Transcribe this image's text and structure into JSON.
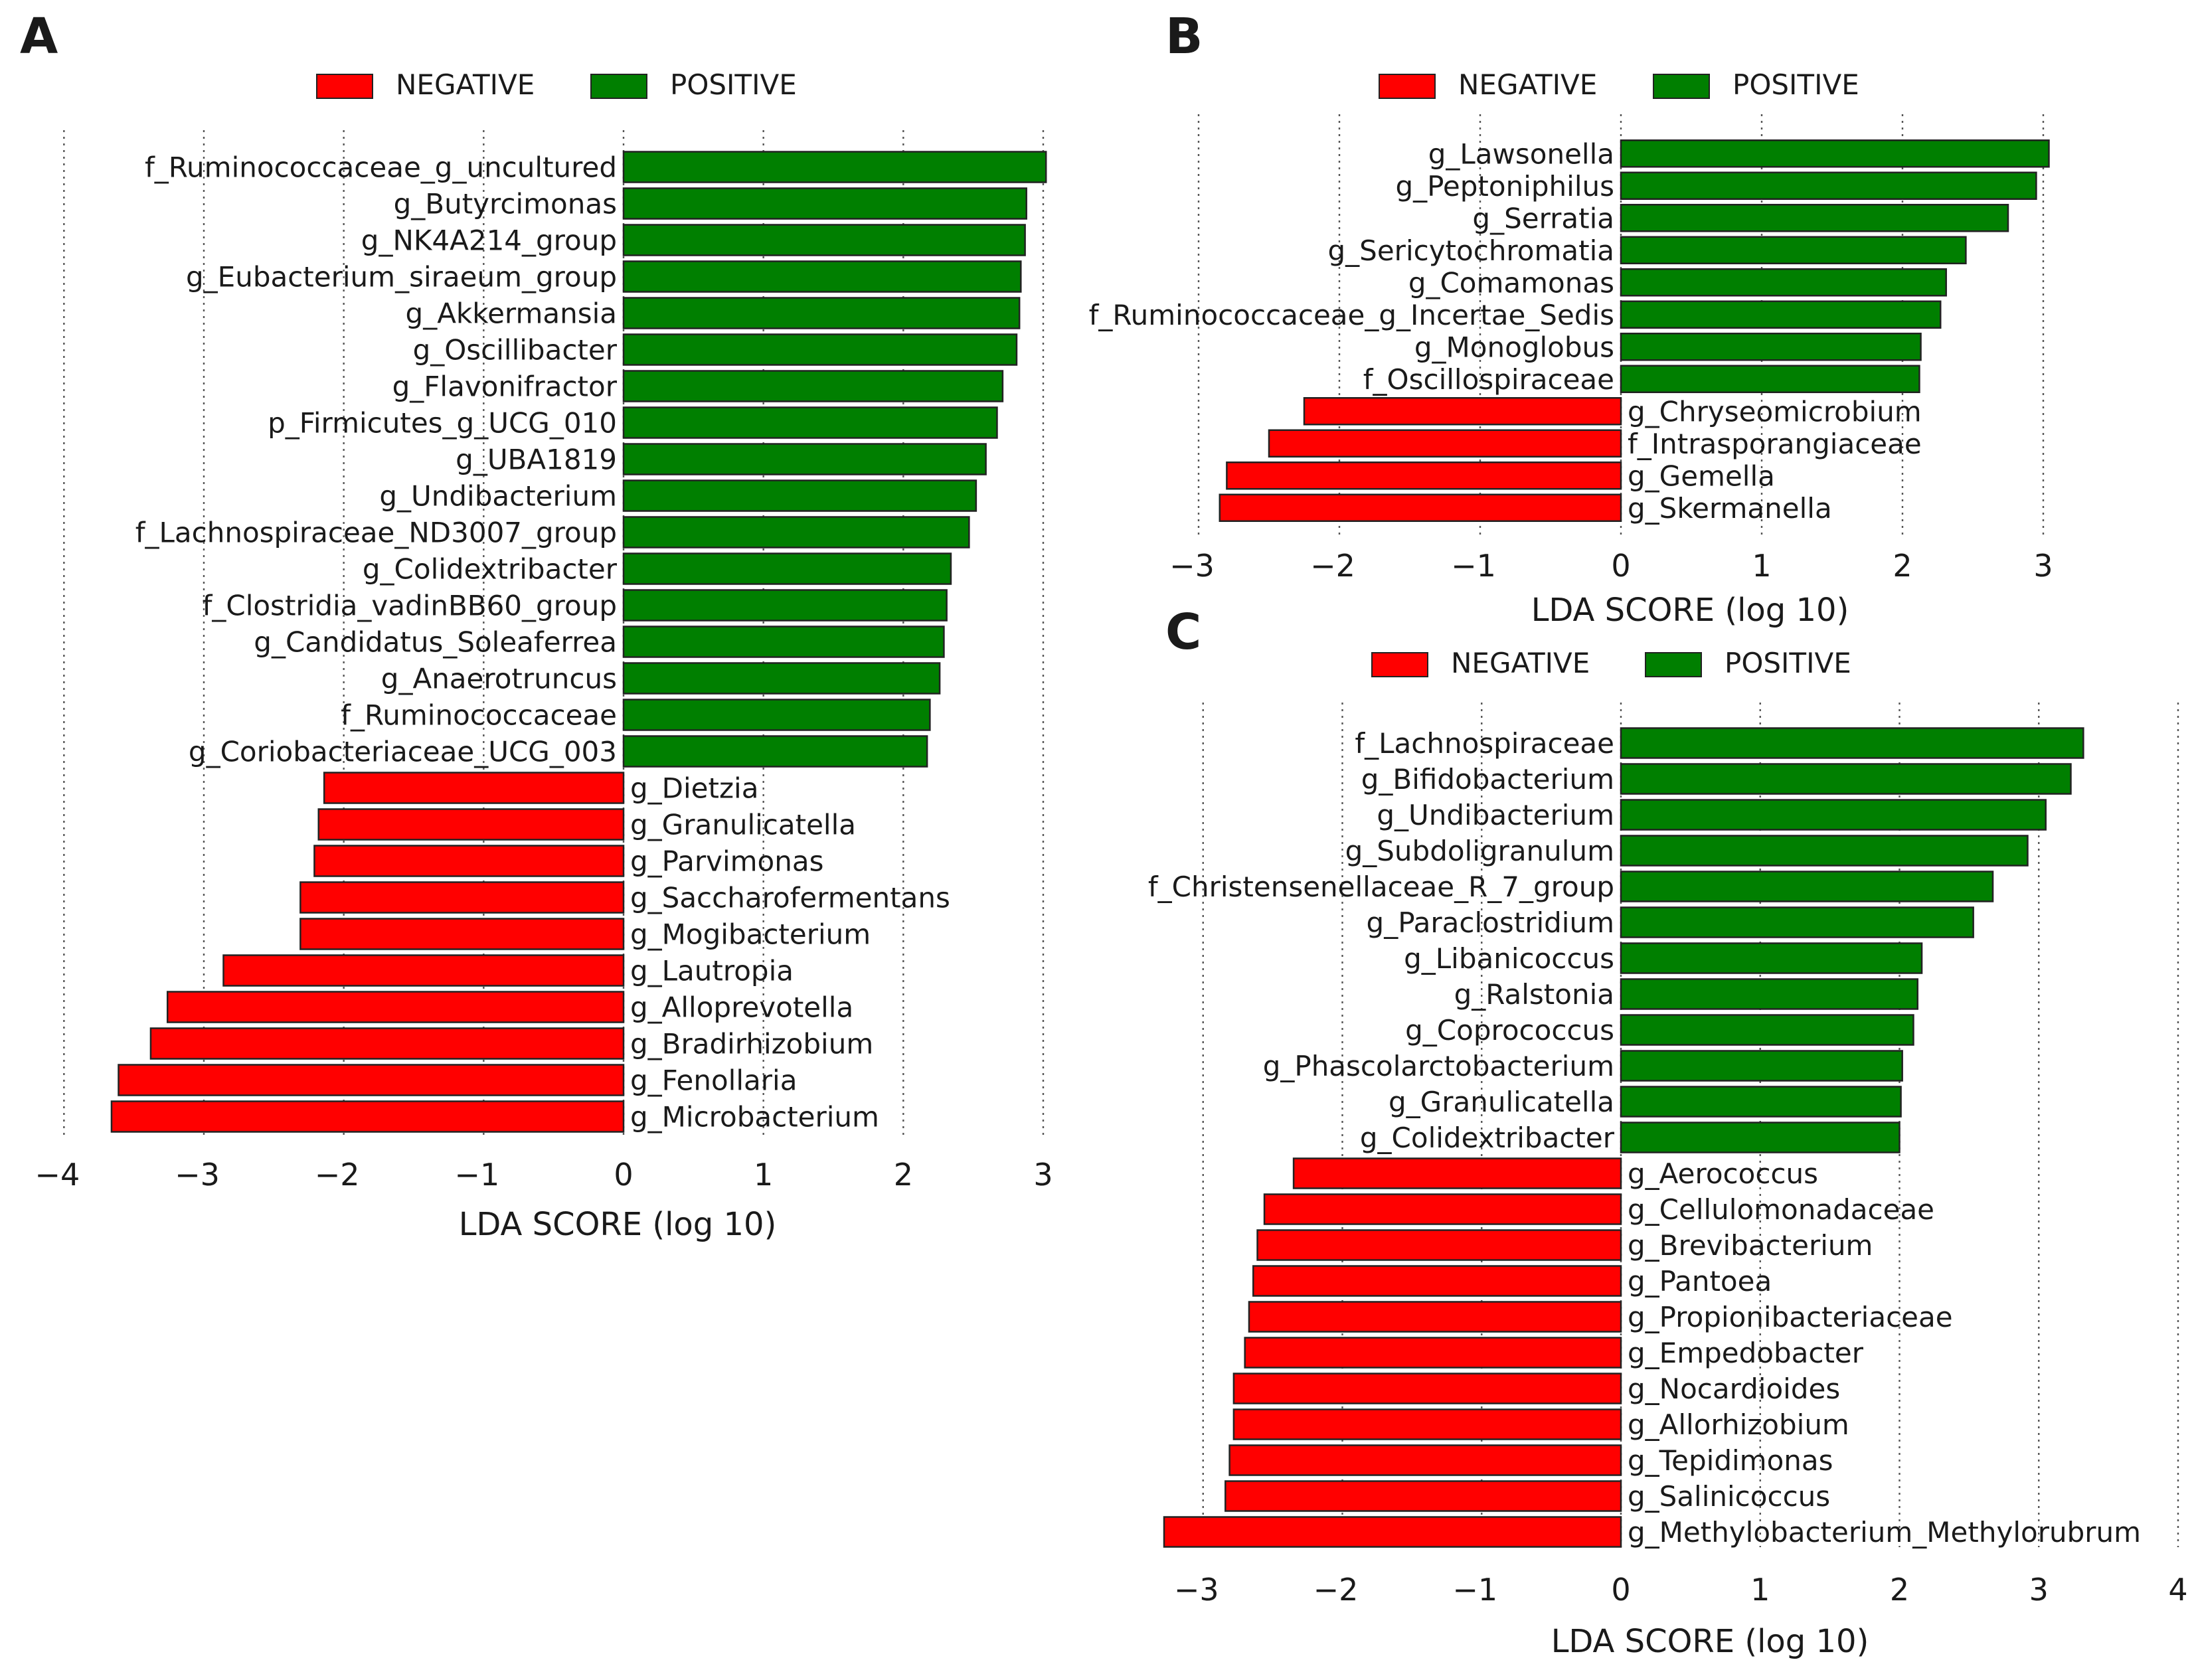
{
  "legend": {
    "negative": "NEGATIVE",
    "positive": "POSITIVE"
  },
  "colors": {
    "negative": "#ff0000",
    "positive": "#007f00",
    "stroke": "#222222",
    "grid": "#555555"
  },
  "chart_data": [
    {
      "panel": "A",
      "type": "bar",
      "orientation": "horizontal",
      "xlabel": "LDA SCORE (log 10)",
      "xlim": [
        -4.05,
        3.05
      ],
      "xticks": [
        -4,
        -3,
        -2,
        -1,
        0,
        1,
        2,
        3
      ],
      "grid": "vertical-dotted",
      "legend_placement": "top-center",
      "bars": [
        {
          "label": "f_Ruminococcaceae_g_uncultured",
          "value": 3.02,
          "group": "POSITIVE"
        },
        {
          "label": "g_Butyrcimonas",
          "value": 2.88,
          "group": "POSITIVE"
        },
        {
          "label": "g_NK4A214_group",
          "value": 2.87,
          "group": "POSITIVE"
        },
        {
          "label": "g_Eubacterium_siraeum_group",
          "value": 2.84,
          "group": "POSITIVE"
        },
        {
          "label": "g_Akkermansia",
          "value": 2.83,
          "group": "POSITIVE"
        },
        {
          "label": "g_Oscillibacter",
          "value": 2.81,
          "group": "POSITIVE"
        },
        {
          "label": "g_Flavonifractor",
          "value": 2.71,
          "group": "POSITIVE"
        },
        {
          "label": "p_Firmicutes_g_UCG_010",
          "value": 2.67,
          "group": "POSITIVE"
        },
        {
          "label": "g_UBA1819",
          "value": 2.59,
          "group": "POSITIVE"
        },
        {
          "label": "g_Undibacterium",
          "value": 2.52,
          "group": "POSITIVE"
        },
        {
          "label": "f_Lachnospiraceae_ND3007_group",
          "value": 2.47,
          "group": "POSITIVE"
        },
        {
          "label": "g_Colidextribacter",
          "value": 2.34,
          "group": "POSITIVE"
        },
        {
          "label": "f_Clostridia_vadinBB60_group",
          "value": 2.31,
          "group": "POSITIVE"
        },
        {
          "label": "g_Candidatus_Soleaferrea",
          "value": 2.29,
          "group": "POSITIVE"
        },
        {
          "label": "g_Anaerotruncus",
          "value": 2.26,
          "group": "POSITIVE"
        },
        {
          "label": "f_Ruminococcaceae",
          "value": 2.19,
          "group": "POSITIVE"
        },
        {
          "label": "g_Coriobacteriaceae_UCG_003",
          "value": 2.17,
          "group": "POSITIVE"
        },
        {
          "label": "g_Dietzia",
          "value": -2.14,
          "group": "NEGATIVE"
        },
        {
          "label": "g_Granulicatella",
          "value": -2.18,
          "group": "NEGATIVE"
        },
        {
          "label": "g_Parvimonas",
          "value": -2.21,
          "group": "NEGATIVE"
        },
        {
          "label": "g_Saccharofermentans",
          "value": -2.31,
          "group": "NEGATIVE"
        },
        {
          "label": "g_Mogibacterium",
          "value": -2.31,
          "group": "NEGATIVE"
        },
        {
          "label": "g_Lautropia",
          "value": -2.86,
          "group": "NEGATIVE"
        },
        {
          "label": "g_Alloprevotella",
          "value": -3.26,
          "group": "NEGATIVE"
        },
        {
          "label": "g_Bradirhizobium",
          "value": -3.38,
          "group": "NEGATIVE"
        },
        {
          "label": "g_Fenollaria",
          "value": -3.61,
          "group": "NEGATIVE"
        },
        {
          "label": "g_Microbacterium",
          "value": -3.66,
          "group": "NEGATIVE"
        }
      ]
    },
    {
      "panel": "B",
      "type": "bar",
      "orientation": "horizontal",
      "xlabel": "LDA SCORE (log 10)",
      "xlim": [
        -3.05,
        3.1
      ],
      "xticks": [
        -3,
        -2,
        -1,
        0,
        1,
        2,
        3
      ],
      "grid": "vertical-dotted",
      "legend_placement": "top-center",
      "bars": [
        {
          "label": "g_Lawsonella",
          "value": 3.04,
          "group": "POSITIVE"
        },
        {
          "label": "g_Peptoniphilus",
          "value": 2.95,
          "group": "POSITIVE"
        },
        {
          "label": "g_Serratia",
          "value": 2.75,
          "group": "POSITIVE"
        },
        {
          "label": "g_Sericytochromatia",
          "value": 2.45,
          "group": "POSITIVE"
        },
        {
          "label": "g_Comamonas",
          "value": 2.31,
          "group": "POSITIVE"
        },
        {
          "label": "f_Ruminococcaceae_g_Incertae_Sedis",
          "value": 2.27,
          "group": "POSITIVE"
        },
        {
          "label": "g_Monoglobus",
          "value": 2.13,
          "group": "POSITIVE"
        },
        {
          "label": "f_Oscillospiraceae",
          "value": 2.12,
          "group": "POSITIVE"
        },
        {
          "label": "g_Chryseomicrobium",
          "value": -2.25,
          "group": "NEGATIVE"
        },
        {
          "label": "f_Intrasporangiaceae",
          "value": -2.5,
          "group": "NEGATIVE"
        },
        {
          "label": "g_Gemella",
          "value": -2.8,
          "group": "NEGATIVE"
        },
        {
          "label": "g_Skermanella",
          "value": -2.85,
          "group": "NEGATIVE"
        }
      ]
    },
    {
      "panel": "C",
      "type": "bar",
      "orientation": "horizontal",
      "xlabel": "LDA SCORE (log 10)",
      "xlim": [
        -3.4,
        4.0
      ],
      "xticks": [
        -3,
        -2,
        -1,
        0,
        1,
        2,
        3,
        4
      ],
      "grid": "vertical-dotted",
      "legend_placement": "top-center",
      "bars": [
        {
          "label": "f_Lachnospiraceae",
          "value": 3.32,
          "group": "POSITIVE"
        },
        {
          "label": "g_Bifidobacterium",
          "value": 3.23,
          "group": "POSITIVE"
        },
        {
          "label": "g_Undibacterium",
          "value": 3.05,
          "group": "POSITIVE"
        },
        {
          "label": "g_Subdoligranulum",
          "value": 2.92,
          "group": "POSITIVE"
        },
        {
          "label": "f_Christensenellaceae_R_7_group",
          "value": 2.67,
          "group": "POSITIVE"
        },
        {
          "label": "g_Paraclostridium",
          "value": 2.53,
          "group": "POSITIVE"
        },
        {
          "label": "g_Libanicoccus",
          "value": 2.16,
          "group": "POSITIVE"
        },
        {
          "label": "g_Ralstonia",
          "value": 2.13,
          "group": "POSITIVE"
        },
        {
          "label": "g_Coprococcus",
          "value": 2.1,
          "group": "POSITIVE"
        },
        {
          "label": "g_Phascolarctobacterium",
          "value": 2.02,
          "group": "POSITIVE"
        },
        {
          "label": "g_Granulicatella",
          "value": 2.01,
          "group": "POSITIVE"
        },
        {
          "label": "g_Colidextribacter",
          "value": 2.0,
          "group": "POSITIVE"
        },
        {
          "label": "g_Aerococcus",
          "value": -2.35,
          "group": "NEGATIVE"
        },
        {
          "label": "g_Cellulomonadaceae",
          "value": -2.56,
          "group": "NEGATIVE"
        },
        {
          "label": "g_Brevibacterium",
          "value": -2.61,
          "group": "NEGATIVE"
        },
        {
          "label": "g_Pantoea",
          "value": -2.64,
          "group": "NEGATIVE"
        },
        {
          "label": "g_Propionibacteriaceae",
          "value": -2.67,
          "group": "NEGATIVE"
        },
        {
          "label": "g_Empedobacter",
          "value": -2.7,
          "group": "NEGATIVE"
        },
        {
          "label": "g_Nocardioides",
          "value": -2.78,
          "group": "NEGATIVE"
        },
        {
          "label": "g_Allorhizobium",
          "value": -2.78,
          "group": "NEGATIVE"
        },
        {
          "label": "g_Tepidimonas",
          "value": -2.81,
          "group": "NEGATIVE"
        },
        {
          "label": "g_Salinicoccus",
          "value": -2.84,
          "group": "NEGATIVE"
        },
        {
          "label": "g_Methylobacterium_Methylorubrum",
          "value": -3.28,
          "group": "NEGATIVE"
        }
      ]
    }
  ]
}
